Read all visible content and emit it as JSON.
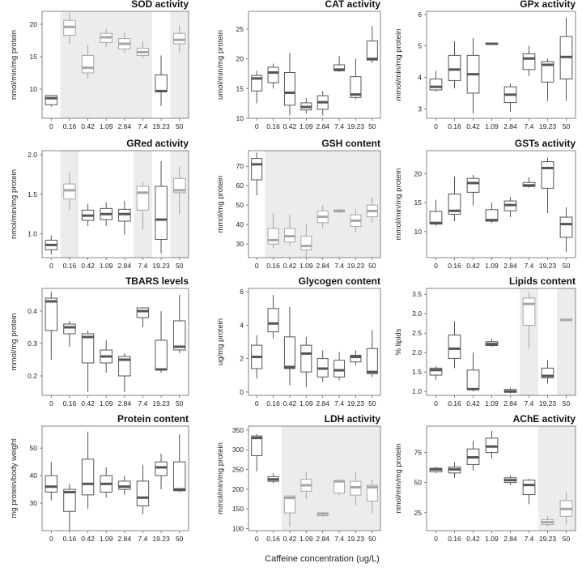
{
  "xlabel": "Caffeine concentration (ug/L)",
  "colors": {
    "dark": "#555555",
    "light": "#a6a6a6",
    "shade": "#ececec",
    "frame": "#666666"
  },
  "chart_data": [
    {
      "type": "box",
      "title": "SOD activity",
      "ylabel": "nmol/min/mg protein",
      "categories": [
        "0",
        "0.16",
        "0.42",
        "1.09",
        "2.84",
        "7.4",
        "19.23",
        "50"
      ],
      "ylim": [
        5.5,
        22
      ],
      "yticks": [
        10,
        15,
        20
      ],
      "shaded": [
        [
          1,
          5
        ],
        [
          7,
          7
        ]
      ],
      "boxes": [
        [
          7.3,
          7.6,
          8.6,
          9,
          9.1
        ],
        [
          17,
          18.3,
          19.6,
          20.6,
          21.8
        ],
        [
          11.6,
          12.5,
          13.3,
          15.2,
          16.8
        ],
        [
          16.5,
          17.2,
          18,
          18.6,
          19.3
        ],
        [
          15.6,
          16.2,
          17,
          17.8,
          18.7
        ],
        [
          14.8,
          15.2,
          15.7,
          16.3,
          17.4
        ],
        [
          7.4,
          9.6,
          9.7,
          12.2,
          15.2
        ],
        [
          15.6,
          17,
          17.6,
          18.6,
          19.8
        ]
      ]
    },
    {
      "type": "box",
      "title": "CAT activity",
      "ylabel": "umol/min/mg protein",
      "categories": [
        "0",
        "0.16",
        "0.42",
        "1.09",
        "2.84",
        "7.4",
        "19.23",
        "50"
      ],
      "ylim": [
        10,
        28
      ],
      "yticks": [
        10,
        15,
        20,
        25
      ],
      "shaded": [],
      "boxes": [
        [
          12.5,
          14.6,
          16.7,
          17.2,
          18
        ],
        [
          15,
          16,
          17.7,
          18.6,
          19.2
        ],
        [
          10.5,
          12.2,
          14.3,
          17.7,
          21
        ],
        [
          10.8,
          11.4,
          11.9,
          12.6,
          13.4
        ],
        [
          10.5,
          11.5,
          12.7,
          13.8,
          14.6
        ],
        [
          17.8,
          18,
          18.2,
          19,
          20.5
        ],
        [
          13.2,
          13.5,
          14,
          17,
          20
        ],
        [
          19.3,
          19.8,
          20,
          23,
          25.5
        ]
      ]
    },
    {
      "type": "box",
      "title": "GPx activity",
      "ylabel": "mmol/min/mg protein",
      "categories": [
        "0",
        "0.16",
        "0.42",
        "1.09",
        "2.84",
        "7.4",
        "19.23",
        "50"
      ],
      "ylim": [
        2.7,
        6.1
      ],
      "yticks": [
        3,
        4,
        5,
        6
      ],
      "shaded": [],
      "boxes": [
        [
          3.55,
          3.6,
          3.7,
          3.95,
          4.2
        ],
        [
          3.65,
          3.9,
          4.25,
          4.7,
          5.15
        ],
        [
          2.85,
          3.5,
          4.1,
          4.7,
          5.25
        ],
        [
          5.03,
          5.05,
          5.07,
          5.08,
          5.1
        ],
        [
          2.9,
          3.2,
          3.45,
          3.7,
          3.8
        ],
        [
          4.05,
          4.25,
          4.6,
          4.75,
          5.0
        ],
        [
          3.25,
          3.85,
          4.4,
          4.5,
          4.6
        ],
        [
          3.25,
          3.95,
          4.65,
          5.3,
          5.9
        ]
      ]
    },
    {
      "type": "box",
      "title": "GRed activity",
      "ylabel": "nmol/min/mg protein",
      "categories": [
        "0",
        "0.16",
        "0.42",
        "1.09",
        "2.84",
        "7.4",
        "19.23",
        "50"
      ],
      "ylim": [
        0.7,
        2.05
      ],
      "yticks": [
        1.0,
        1.5,
        2.0
      ],
      "ytickfmt": 1,
      "shaded": [
        [
          1,
          1
        ],
        [
          5,
          5
        ],
        [
          7,
          7
        ]
      ],
      "boxes": [
        [
          0.74,
          0.8,
          0.86,
          0.92,
          0.98
        ],
        [
          1.3,
          1.44,
          1.55,
          1.63,
          1.77
        ],
        [
          1.1,
          1.17,
          1.23,
          1.3,
          1.38
        ],
        [
          1.1,
          1.18,
          1.25,
          1.32,
          1.4
        ],
        [
          0.99,
          1.16,
          1.25,
          1.31,
          1.42
        ],
        [
          1.05,
          1.3,
          1.52,
          1.6,
          1.65
        ],
        [
          0.75,
          0.93,
          1.18,
          1.6,
          1.92
        ],
        [
          1.25,
          1.52,
          1.55,
          1.7,
          1.85
        ]
      ]
    },
    {
      "type": "box",
      "title": "GSH content",
      "ylabel": "mmol/mg protein",
      "categories": [
        "0",
        "0.16",
        "0.42",
        "1.09",
        "2.84",
        "7.4",
        "19.23",
        "50"
      ],
      "ylim": [
        23,
        78
      ],
      "yticks": [
        30,
        40,
        50,
        60,
        70
      ],
      "shaded": [
        [
          1,
          7
        ]
      ],
      "boxes": [
        [
          55,
          63,
          71,
          74,
          77
        ],
        [
          28,
          30,
          32,
          38,
          46
        ],
        [
          29,
          31,
          34,
          38,
          45
        ],
        [
          23,
          27,
          29,
          34,
          40
        ],
        [
          38,
          41,
          44,
          47,
          50
        ],
        [
          46,
          46.5,
          47,
          47.5,
          48
        ],
        [
          36,
          39,
          42,
          45,
          48
        ],
        [
          41,
          44,
          47,
          50,
          54
        ]
      ]
    },
    {
      "type": "box",
      "title": "GSTs activity",
      "ylabel": "mmol/min/mg protein",
      "categories": [
        "0",
        "0.16",
        "0.42",
        "1.09",
        "2.84",
        "7.4",
        "19.23",
        "50"
      ],
      "ylim": [
        5.5,
        24
      ],
      "yticks": [
        10,
        15,
        20
      ],
      "shaded": [],
      "boxes": [
        [
          11,
          11.3,
          11.5,
          13.5,
          15.5
        ],
        [
          11.8,
          13,
          13.6,
          16.5,
          19.5
        ],
        [
          14.5,
          16.8,
          18.4,
          19.2,
          19.8
        ],
        [
          11.5,
          11.8,
          12,
          13.8,
          15
        ],
        [
          12.5,
          13.6,
          14.6,
          15.3,
          16
        ],
        [
          17.6,
          17.8,
          18,
          18.5,
          19.4
        ],
        [
          13.2,
          17.5,
          21,
          22.1,
          22.8
        ],
        [
          6.5,
          9,
          11.3,
          12.5,
          14.2
        ]
      ]
    },
    {
      "type": "box",
      "title": "TBARS levels",
      "ylabel": "mmol/mg protein",
      "categories": [
        "0",
        "0.16",
        "0.42",
        "1.09",
        "2.84",
        "7.4",
        "19.23",
        "50"
      ],
      "ylim": [
        0.14,
        0.47
      ],
      "yticks": [
        0.2,
        0.3,
        0.4
      ],
      "ytickfmt": 1,
      "shaded": [],
      "boxes": [
        [
          0.25,
          0.34,
          0.43,
          0.44,
          0.46
        ],
        [
          0.29,
          0.33,
          0.35,
          0.36,
          0.37
        ],
        [
          0.15,
          0.24,
          0.32,
          0.33,
          0.34
        ],
        [
          0.21,
          0.24,
          0.26,
          0.28,
          0.31
        ],
        [
          0.15,
          0.2,
          0.25,
          0.26,
          0.27
        ],
        [
          0.35,
          0.38,
          0.4,
          0.41,
          0.41
        ],
        [
          0.21,
          0.22,
          0.22,
          0.31,
          0.4
        ],
        [
          0.27,
          0.28,
          0.29,
          0.37,
          0.45
        ]
      ]
    },
    {
      "type": "box",
      "title": "Glycogen content",
      "ylabel": "ug/mg protein",
      "categories": [
        "0",
        "0.16",
        "0.42",
        "1.09",
        "2.84",
        "7.4",
        "19.23",
        "50"
      ],
      "ylim": [
        -0.2,
        6.2
      ],
      "yticks": [
        0,
        2,
        4,
        6
      ],
      "shaded": [],
      "boxes": [
        [
          0.8,
          1.4,
          2.1,
          2.8,
          3.4
        ],
        [
          3.2,
          3.6,
          4.1,
          5,
          5.8
        ],
        [
          0.4,
          1.4,
          1.5,
          3.3,
          5.1
        ],
        [
          0.3,
          1.2,
          2.3,
          2.8,
          3.3
        ],
        [
          0.6,
          0.9,
          1.4,
          2,
          2.5
        ],
        [
          0.7,
          0.9,
          1.3,
          1.9,
          2.4
        ],
        [
          1.6,
          1.8,
          2.1,
          2.2,
          2.5
        ],
        [
          0.9,
          1.1,
          1.2,
          2.6,
          3.7
        ]
      ]
    },
    {
      "type": "box",
      "title": "Lipids content",
      "ylabel": "% lipids",
      "categories": [
        "0",
        "0.16",
        "0.42",
        "1.09",
        "2.84",
        "7.4",
        "19.23",
        "50"
      ],
      "ylim": [
        0.9,
        3.65
      ],
      "yticks": [
        1.0,
        1.5,
        2.0,
        2.5,
        3.0,
        3.5
      ],
      "ytickfmt": 1,
      "shaded": [
        [
          5,
          5
        ],
        [
          7,
          7
        ]
      ],
      "boxes": [
        [
          1.3,
          1.42,
          1.55,
          1.6,
          1.65
        ],
        [
          1.6,
          1.85,
          2.1,
          2.45,
          2.8
        ],
        [
          1.0,
          1.05,
          1.06,
          1.55,
          2.0
        ],
        [
          2.15,
          2.18,
          2.22,
          2.28,
          2.35
        ],
        [
          0.95,
          0.98,
          1.0,
          1.05,
          1.1
        ],
        [
          2.1,
          2.7,
          3.25,
          3.4,
          3.55
        ],
        [
          1.2,
          1.35,
          1.4,
          1.6,
          1.8
        ],
        [
          2.82,
          2.83,
          2.84,
          2.85,
          2.86
        ]
      ]
    },
    {
      "type": "box",
      "title": "Protein content",
      "ylabel": "mg protein/body weight",
      "categories": [
        "0",
        "0.16",
        "0.42",
        "1.09",
        "2.84",
        "7.4",
        "19.23",
        "50"
      ],
      "ylim": [
        20,
        58
      ],
      "yticks": [
        30,
        40,
        50
      ],
      "shaded": [],
      "boxes": [
        [
          31,
          34,
          36,
          40,
          45
        ],
        [
          20,
          27,
          34,
          35,
          37
        ],
        [
          28,
          33,
          37,
          46,
          56
        ],
        [
          32,
          34,
          37,
          40,
          43
        ],
        [
          33,
          35,
          36,
          38,
          40
        ],
        [
          26,
          29,
          32,
          38,
          44
        ],
        [
          35,
          40,
          43,
          45,
          48
        ],
        [
          34,
          34.5,
          35,
          45,
          55
        ]
      ]
    },
    {
      "type": "box",
      "title": "LDH activity",
      "ylabel": "mmol/min/mg protein",
      "categories": [
        "0",
        "0.16",
        "0.42",
        "1.09",
        "2.84",
        "7.4",
        "19.23",
        "50"
      ],
      "ylim": [
        95,
        360
      ],
      "yticks": [
        100,
        150,
        200,
        250,
        300,
        350
      ],
      "shaded": [
        [
          2,
          7
        ]
      ],
      "boxes": [
        [
          245,
          285,
          330,
          335,
          340
        ],
        [
          215,
          220,
          225,
          232,
          240
        ],
        [
          105,
          140,
          178,
          183,
          185
        ],
        [
          175,
          195,
          210,
          225,
          245
        ],
        [
          130,
          133,
          138,
          140,
          142
        ],
        [
          185,
          190,
          220,
          222,
          225
        ],
        [
          160,
          185,
          205,
          220,
          245
        ],
        [
          140,
          170,
          205,
          210,
          225
        ]
      ]
    },
    {
      "type": "box",
      "title": "AChE activity",
      "ylabel": "nmol/min/mg protein",
      "categories": [
        "0",
        "0.16",
        "0.42",
        "1.09",
        "2.84",
        "7.4",
        "19.23",
        "50"
      ],
      "ylim": [
        10,
        97
      ],
      "yticks": [
        25,
        50,
        75
      ],
      "shaded": [
        [
          6,
          7
        ]
      ],
      "boxes": [
        [
          58,
          59,
          61,
          62,
          63
        ],
        [
          54,
          58,
          61,
          63,
          67
        ],
        [
          60,
          65,
          71,
          78,
          85
        ],
        [
          70,
          75,
          80,
          87,
          93
        ],
        [
          48,
          50,
          52,
          54,
          56
        ],
        [
          32,
          40,
          48,
          52,
          53
        ],
        [
          13,
          15,
          17,
          19,
          22
        ],
        [
          15,
          22,
          28,
          35,
          42
        ]
      ]
    }
  ]
}
